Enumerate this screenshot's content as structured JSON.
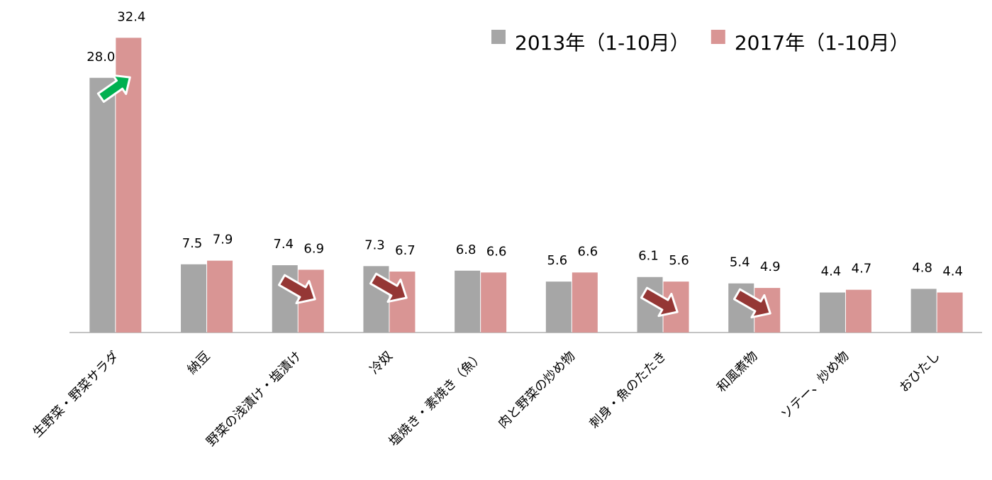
{
  "chart_data": {
    "type": "bar",
    "categories": [
      "生野菜・野菜サラダ",
      "納豆",
      "野菜の浅漬け・塩漬け",
      "冷奴",
      "塩焼き・素焼き（魚）",
      "肉と野菜の炒め物",
      "刺身・魚のたたき",
      "和風煮物",
      "ソテー、炒め物",
      "おひたし"
    ],
    "series": [
      {
        "name": "2013年（1-10月）",
        "color": "#a6a6a6",
        "values": [
          28.0,
          7.5,
          7.4,
          7.3,
          6.8,
          5.6,
          6.1,
          5.4,
          4.4,
          4.8
        ],
        "value_labels": [
          "28.0",
          "7.5",
          "7.4",
          "7.3",
          "6.8",
          "5.6",
          "6.1",
          "5.4",
          "4.4",
          "4.8"
        ]
      },
      {
        "name": "2017年（1-10月）",
        "color": "#d99594",
        "values": [
          32.4,
          7.9,
          6.9,
          6.7,
          6.6,
          6.6,
          5.6,
          4.9,
          4.7,
          4.4
        ],
        "value_labels": [
          "32.4",
          "7.9",
          "6.9",
          "6.7",
          "6.6",
          "6.6",
          "5.6",
          "4.9",
          "4.7",
          "4.4"
        ]
      }
    ],
    "ylim": [
      0,
      35
    ],
    "legend": "top-right"
  }
}
